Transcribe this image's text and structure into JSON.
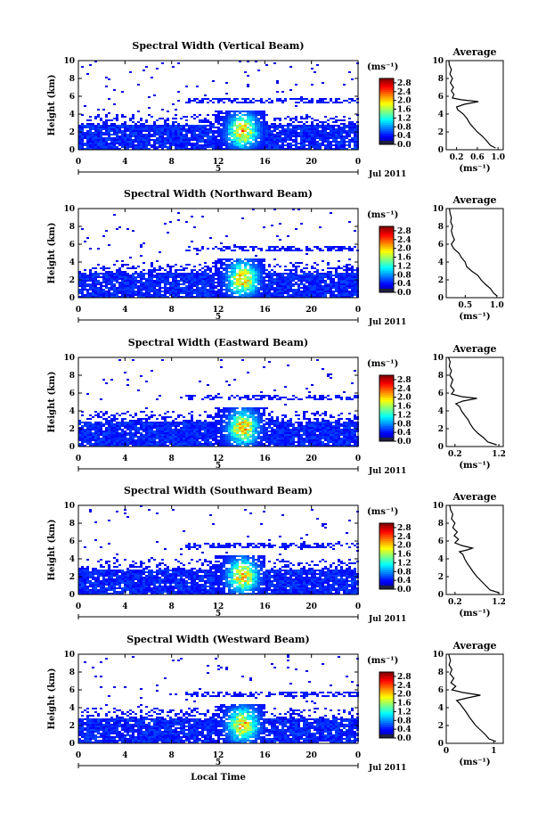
{
  "chart_data": [
    {
      "type": "heatmap",
      "title": "Spectral Width (Vertical Beam)",
      "ylabel": "Height (km)",
      "ylim": [
        0,
        10
      ],
      "yticks": [
        "0",
        "2",
        "4",
        "6",
        "8",
        "10"
      ],
      "xlim": [
        0,
        24
      ],
      "xticks": [
        "0",
        "4",
        "8",
        "12",
        "16",
        "20",
        "0"
      ],
      "date_tick": "5",
      "date_label": "Jul 2011",
      "colorbar": {
        "unit": "(ms⁻¹)",
        "ticks": [
          "0.0",
          "0.4",
          "0.8",
          "1.2",
          "1.6",
          "2.0",
          "2.4",
          "2.8"
        ],
        "range": [
          0,
          3.0
        ]
      },
      "average": {
        "title": "Average",
        "xlabel": "(ms⁻¹)",
        "xticks": [
          "0.2",
          "0.6",
          "1.0"
        ],
        "xlim": [
          0,
          1.1
        ],
        "profile": [
          [
            0.2,
            0.95
          ],
          [
            0.5,
            0.85
          ],
          [
            1.0,
            0.78
          ],
          [
            1.5,
            0.7
          ],
          [
            2.0,
            0.6
          ],
          [
            2.5,
            0.52
          ],
          [
            3.0,
            0.45
          ],
          [
            3.5,
            0.4
          ],
          [
            4.0,
            0.33
          ],
          [
            4.5,
            0.22
          ],
          [
            4.8,
            0.2
          ],
          [
            5.1,
            0.35
          ],
          [
            5.4,
            0.62
          ],
          [
            5.6,
            0.3
          ],
          [
            5.8,
            0.12
          ],
          [
            6.2,
            0.15
          ],
          [
            6.6,
            0.1
          ],
          [
            7.0,
            0.14
          ],
          [
            7.5,
            0.08
          ],
          [
            8.0,
            0.12
          ],
          [
            8.5,
            0.07
          ],
          [
            9.0,
            0.1
          ],
          [
            9.5,
            0.06
          ],
          [
            10.0,
            0.05
          ]
        ]
      }
    },
    {
      "type": "heatmap",
      "title": "Spectral Width (Northward Beam)",
      "ylabel": "Height (km)",
      "ylim": [
        0,
        10
      ],
      "yticks": [
        "0",
        "2",
        "4",
        "6",
        "8",
        "10"
      ],
      "xlim": [
        0,
        24
      ],
      "xticks": [
        "0",
        "4",
        "8",
        "12",
        "16",
        "20",
        "0"
      ],
      "date_tick": "5",
      "date_label": "Jul 2011",
      "colorbar": {
        "unit": "(ms⁻¹)",
        "ticks": [
          "0.0",
          "0.4",
          "0.8",
          "1.2",
          "1.6",
          "2.0",
          "2.4",
          "2.8"
        ],
        "range": [
          0,
          3.0
        ]
      },
      "average": {
        "title": "Average",
        "xlabel": "(ms⁻¹)",
        "xticks": [
          "0.5",
          "1.0"
        ],
        "xlim": [
          0.2,
          1.1
        ],
        "profile": [
          [
            0.2,
            1.0
          ],
          [
            0.5,
            0.95
          ],
          [
            1.0,
            0.9
          ],
          [
            1.5,
            0.82
          ],
          [
            2.0,
            0.75
          ],
          [
            2.5,
            0.7
          ],
          [
            3.0,
            0.6
          ],
          [
            3.5,
            0.52
          ],
          [
            4.0,
            0.5
          ],
          [
            4.5,
            0.44
          ],
          [
            5.0,
            0.4
          ],
          [
            5.5,
            0.32
          ],
          [
            6.0,
            0.28
          ],
          [
            6.5,
            0.33
          ],
          [
            7.0,
            0.3
          ],
          [
            7.5,
            0.28
          ],
          [
            8.0,
            0.3
          ],
          [
            8.5,
            0.27
          ],
          [
            9.0,
            0.28
          ],
          [
            9.5,
            0.26
          ],
          [
            10.0,
            0.25
          ]
        ]
      }
    },
    {
      "type": "heatmap",
      "title": "Spectral Width (Eastward Beam)",
      "ylabel": "Height (km)",
      "ylim": [
        0,
        10
      ],
      "yticks": [
        "0",
        "2",
        "4",
        "6",
        "8",
        "10"
      ],
      "xlim": [
        0,
        24
      ],
      "xticks": [
        "0",
        "4",
        "8",
        "12",
        "16",
        "20",
        "0"
      ],
      "date_tick": "5",
      "date_label": "Jul 2011",
      "colorbar": {
        "unit": "(ms⁻¹)",
        "ticks": [
          "0.0",
          "0.4",
          "0.8",
          "1.2",
          "1.6",
          "2.0",
          "2.4",
          "2.8"
        ],
        "range": [
          0,
          3.0
        ]
      },
      "average": {
        "title": "Average",
        "xlabel": "(ms⁻¹)",
        "xticks": [
          "0.2",
          "1.2"
        ],
        "xlim": [
          0,
          1.3
        ],
        "profile": [
          [
            0.2,
            1.15
          ],
          [
            0.5,
            0.95
          ],
          [
            1.0,
            0.85
          ],
          [
            1.5,
            0.72
          ],
          [
            2.0,
            0.62
          ],
          [
            2.5,
            0.55
          ],
          [
            3.0,
            0.5
          ],
          [
            3.5,
            0.42
          ],
          [
            4.0,
            0.35
          ],
          [
            4.5,
            0.3
          ],
          [
            4.8,
            0.22
          ],
          [
            5.1,
            0.38
          ],
          [
            5.4,
            0.7
          ],
          [
            5.6,
            0.35
          ],
          [
            5.9,
            0.12
          ],
          [
            6.3,
            0.18
          ],
          [
            6.8,
            0.1
          ],
          [
            7.5,
            0.15
          ],
          [
            8.0,
            0.08
          ],
          [
            8.5,
            0.12
          ],
          [
            9.0,
            0.07
          ],
          [
            9.5,
            0.09
          ],
          [
            10.0,
            0.05
          ]
        ]
      }
    },
    {
      "type": "heatmap",
      "title": "Spectral Width (Southward Beam)",
      "ylabel": "Height (km)",
      "ylim": [
        0,
        10
      ],
      "yticks": [
        "0",
        "2",
        "4",
        "6",
        "8",
        "10"
      ],
      "xlim": [
        0,
        24
      ],
      "xticks": [
        "0",
        "4",
        "8",
        "12",
        "16",
        "20",
        "0"
      ],
      "date_tick": "5",
      "date_label": "Jul 2011",
      "colorbar": {
        "unit": "(ms⁻¹)",
        "ticks": [
          "0.0",
          "0.4",
          "0.8",
          "1.2",
          "1.6",
          "2.0",
          "2.4",
          "2.8"
        ],
        "range": [
          0,
          3.0
        ]
      },
      "average": {
        "title": "Average",
        "xlabel": "(ms⁻¹)",
        "xticks": [
          "0.2",
          "1.2"
        ],
        "xlim": [
          0,
          1.3
        ],
        "profile": [
          [
            0.2,
            1.2
          ],
          [
            0.5,
            1.0
          ],
          [
            1.0,
            0.9
          ],
          [
            1.5,
            0.8
          ],
          [
            2.0,
            0.7
          ],
          [
            2.5,
            0.62
          ],
          [
            3.0,
            0.55
          ],
          [
            3.5,
            0.48
          ],
          [
            4.0,
            0.42
          ],
          [
            4.5,
            0.38
          ],
          [
            4.8,
            0.3
          ],
          [
            5.0,
            0.48
          ],
          [
            5.2,
            0.6
          ],
          [
            5.5,
            0.35
          ],
          [
            5.8,
            0.2
          ],
          [
            6.2,
            0.28
          ],
          [
            6.6,
            0.18
          ],
          [
            7.0,
            0.25
          ],
          [
            7.5,
            0.15
          ],
          [
            8.0,
            0.2
          ],
          [
            8.5,
            0.12
          ],
          [
            9.0,
            0.15
          ],
          [
            9.5,
            0.1
          ],
          [
            10.0,
            0.08
          ]
        ]
      }
    },
    {
      "type": "heatmap",
      "title": "Spectral Width (Westward Beam)",
      "ylabel": "Height (km)",
      "ylim": [
        0,
        10
      ],
      "yticks": [
        "0",
        "2",
        "4",
        "6",
        "8",
        "10"
      ],
      "xlim": [
        0,
        24
      ],
      "xticks": [
        "0",
        "4",
        "8",
        "12",
        "16",
        "20",
        "0"
      ],
      "date_tick": "5",
      "date_label": "Jul 2011",
      "xlabel": "Local Time",
      "colorbar": {
        "unit": "(ms⁻¹)",
        "ticks": [
          "0.0",
          "0.4",
          "0.8",
          "1.2",
          "1.6",
          "2.0",
          "2.4",
          "2.8"
        ],
        "range": [
          0,
          3.0
        ]
      },
      "average": {
        "title": "Average",
        "xlabel": "(ms⁻¹)",
        "xticks": [
          "0",
          "1"
        ],
        "xlim": [
          0,
          1.2
        ],
        "profile": [
          [
            0.2,
            1.05
          ],
          [
            0.5,
            0.9
          ],
          [
            1.0,
            0.82
          ],
          [
            1.5,
            0.72
          ],
          [
            2.0,
            0.62
          ],
          [
            2.5,
            0.55
          ],
          [
            3.0,
            0.48
          ],
          [
            3.5,
            0.42
          ],
          [
            4.0,
            0.35
          ],
          [
            4.5,
            0.28
          ],
          [
            4.8,
            0.22
          ],
          [
            5.1,
            0.45
          ],
          [
            5.4,
            0.72
          ],
          [
            5.7,
            0.35
          ],
          [
            6.0,
            0.12
          ],
          [
            6.4,
            0.2
          ],
          [
            6.8,
            0.1
          ],
          [
            7.3,
            0.16
          ],
          [
            7.8,
            0.08
          ],
          [
            8.3,
            0.12
          ],
          [
            8.8,
            0.06
          ],
          [
            9.3,
            0.09
          ],
          [
            10.0,
            0.05
          ]
        ]
      }
    }
  ]
}
